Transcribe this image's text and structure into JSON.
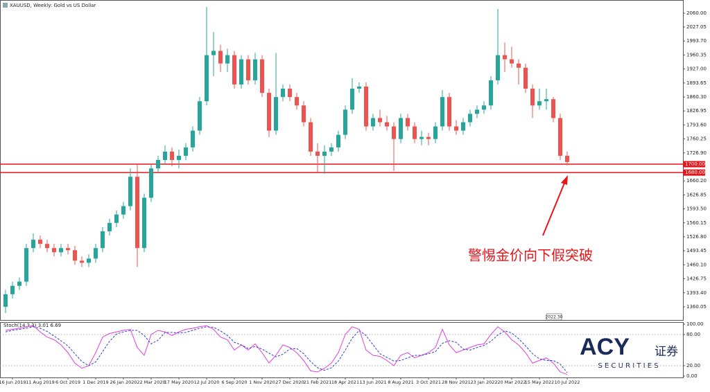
{
  "chart_data": {
    "type": "candlestick",
    "title": "XAUUSD, Weekly: Gold vs US Dollar",
    "annotation": "警惕金价向下假突破",
    "marker_label": "2022.30",
    "logo": {
      "brand": "ACY",
      "cn": "证券",
      "sub": "S E C U R I T I E S"
    },
    "up_color": "#26a69a",
    "down_color": "#ef5350",
    "ylim": [
      1328.6,
      2091.4
    ],
    "yticks": [
      {
        "value": 2060,
        "label": "2060.00"
      },
      {
        "value": 2027.05,
        "label": "2027.05"
      },
      {
        "value": 1993.7,
        "label": "1993.70"
      },
      {
        "value": 1960.35,
        "label": "1960.35"
      },
      {
        "value": 1927,
        "label": "1927.00"
      },
      {
        "value": 1893.65,
        "label": "1893.65"
      },
      {
        "value": 1860.3,
        "label": "1860.30"
      },
      {
        "value": 1826.95,
        "label": "1826.95"
      },
      {
        "value": 1793.6,
        "label": "1793.60"
      },
      {
        "value": 1760.25,
        "label": "1760.25"
      },
      {
        "value": 1726.9,
        "label": "1726.90"
      },
      {
        "value": 1660.2,
        "label": "1660.20"
      },
      {
        "value": 1626.85,
        "label": "1626.85"
      },
      {
        "value": 1593.5,
        "label": "1593.50"
      },
      {
        "value": 1560.15,
        "label": "1560.15"
      },
      {
        "value": 1526.8,
        "label": "1526.80"
      },
      {
        "value": 1493.45,
        "label": "1493.45"
      },
      {
        "value": 1460.1,
        "label": "1460.10"
      },
      {
        "value": 1426.75,
        "label": "1426.75"
      },
      {
        "value": 1393.4,
        "label": "1393.40"
      },
      {
        "value": 1360.05,
        "label": "1360.05"
      }
    ],
    "hlines": [
      {
        "value": 1700,
        "label": "1700.00"
      },
      {
        "value": 1680,
        "label": "1680.00"
      }
    ],
    "hline_color": "#e8141a",
    "categories": [
      null,
      "16 Jun 2019",
      null,
      null,
      null,
      "11 Aug 2019",
      null,
      null,
      null,
      "6 Oct 2019",
      null,
      null,
      null,
      "1 Dec 2019",
      null,
      null,
      null,
      "26 Jan 2020",
      null,
      null,
      null,
      "22 Mar 2020",
      null,
      null,
      null,
      "17 May 2020",
      null,
      null,
      null,
      "12 Jul 2020",
      null,
      null,
      null,
      "6 Sep 2020",
      null,
      null,
      null,
      "1 Nov 2020",
      null,
      null,
      null,
      "27 Dec 2020",
      null,
      null,
      null,
      "21 Feb 2021",
      null,
      null,
      null,
      "18 Apr 2021",
      null,
      null,
      null,
      "13 Jun 2021",
      null,
      null,
      null,
      "8 Aug 2021",
      null,
      null,
      null,
      "3 Oct 2021",
      null,
      null,
      null,
      "28 Nov 2021",
      null,
      null,
      null,
      "23 Jan 2022",
      null,
      null,
      null,
      "20 Mar 2022",
      null,
      null,
      null,
      "15 May 2022",
      null,
      null,
      null,
      "10 Jul 2022"
    ],
    "open": [
      1360,
      1390,
      1410,
      1420,
      1500,
      1520,
      1510,
      1500,
      1490,
      1500,
      1495,
      1470,
      1465,
      1475,
      1500,
      1540,
      1560,
      1580,
      1600,
      1670,
      1500,
      1620,
      1690,
      1710,
      1730,
      1710,
      1720,
      1740,
      1780,
      1850,
      1960,
      1970,
      1940,
      1960,
      1890,
      1950,
      1900,
      1950,
      1870,
      1780,
      1860,
      1880,
      1860,
      1840,
      1800,
      1730,
      1720,
      1730,
      1740,
      1770,
      1830,
      1880,
      1885,
      1790,
      1810,
      1800,
      1790,
      1760,
      1810,
      1790,
      1760,
      1765,
      1760,
      1790,
      1860,
      1790,
      1780,
      1800,
      1820,
      1830,
      1840,
      1900,
      1960,
      1950,
      1940,
      1930,
      1880,
      1840,
      1850,
      1855,
      1810,
      1720
    ],
    "high": [
      1400,
      1420,
      1430,
      1510,
      1535,
      1530,
      1520,
      1510,
      1510,
      1510,
      1505,
      1480,
      1485,
      1510,
      1550,
      1570,
      1590,
      1610,
      1690,
      1700,
      1630,
      1700,
      1720,
      1745,
      1740,
      1735,
      1750,
      1790,
      1860,
      2075,
      2015,
      1985,
      1975,
      1970,
      1960,
      1960,
      1965,
      1960,
      1880,
      1965,
      1890,
      1890,
      1870,
      1850,
      1810,
      1750,
      1745,
      1750,
      1780,
      1840,
      1905,
      1895,
      1895,
      1820,
      1830,
      1815,
      1800,
      1820,
      1820,
      1800,
      1780,
      1775,
      1800,
      1877,
      1870,
      1805,
      1810,
      1830,
      1840,
      1850,
      1910,
      2070,
      1990,
      1980,
      1950,
      1940,
      1890,
      1880,
      1880,
      1860,
      1820,
      1730
    ],
    "low": [
      1345,
      1380,
      1400,
      1410,
      1490,
      1500,
      1490,
      1480,
      1480,
      1485,
      1460,
      1455,
      1455,
      1465,
      1490,
      1530,
      1550,
      1570,
      1590,
      1455,
      1490,
      1610,
      1680,
      1700,
      1695,
      1690,
      1710,
      1730,
      1770,
      1840,
      1910,
      1920,
      1920,
      1880,
      1880,
      1890,
      1890,
      1860,
      1765,
      1770,
      1850,
      1850,
      1830,
      1790,
      1720,
      1680,
      1677,
      1720,
      1730,
      1760,
      1820,
      1870,
      1780,
      1780,
      1790,
      1780,
      1684,
      1750,
      1780,
      1750,
      1745,
      1745,
      1750,
      1780,
      1780,
      1770,
      1770,
      1790,
      1810,
      1820,
      1830,
      1890,
      1920,
      1930,
      1890,
      1870,
      1810,
      1830,
      1830,
      1800,
      1710,
      1697
    ],
    "close": [
      1390,
      1410,
      1420,
      1500,
      1520,
      1510,
      1500,
      1490,
      1500,
      1495,
      1470,
      1465,
      1475,
      1500,
      1540,
      1560,
      1580,
      1600,
      1670,
      1500,
      1620,
      1690,
      1710,
      1730,
      1710,
      1720,
      1740,
      1780,
      1850,
      1960,
      1970,
      1940,
      1960,
      1890,
      1950,
      1900,
      1950,
      1870,
      1780,
      1860,
      1880,
      1860,
      1840,
      1800,
      1730,
      1720,
      1730,
      1740,
      1770,
      1830,
      1880,
      1885,
      1790,
      1810,
      1800,
      1790,
      1760,
      1810,
      1790,
      1760,
      1765,
      1760,
      1790,
      1860,
      1790,
      1780,
      1800,
      1820,
      1830,
      1840,
      1900,
      1960,
      1950,
      1940,
      1930,
      1880,
      1840,
      1850,
      1855,
      1810,
      1720,
      1705
    ],
    "indicator": {
      "label": "Stoch(14,3,3) 3.01 6.69",
      "ylim": [
        -2.7,
        104
      ],
      "yticks": [
        {
          "value": 100,
          "label": "100.00"
        },
        {
          "value": 80,
          "label": "80.00"
        },
        {
          "value": 20,
          "label": "20.00"
        },
        {
          "value": 0,
          "label": "0.00"
        }
      ],
      "levels": [
        80,
        20
      ],
      "series": [
        {
          "color": "#e040e0",
          "dashed": false,
          "values": [
            88,
            90,
            92,
            95,
            97,
            85,
            75,
            70,
            60,
            45,
            25,
            15,
            20,
            45,
            75,
            82,
            85,
            88,
            90,
            55,
            40,
            80,
            88,
            85,
            78,
            85,
            90,
            92,
            95,
            97,
            90,
            75,
            70,
            50,
            60,
            50,
            62,
            45,
            25,
            40,
            60,
            55,
            45,
            30,
            10,
            8,
            15,
            25,
            45,
            80,
            95,
            90,
            50,
            40,
            38,
            30,
            20,
            40,
            45,
            35,
            40,
            45,
            55,
            90,
            60,
            45,
            50,
            55,
            60,
            62,
            80,
            95,
            85,
            70,
            60,
            45,
            25,
            30,
            35,
            25,
            8,
            3.01
          ]
        },
        {
          "color": "#2a3fd4",
          "dashed": true,
          "values": [
            85,
            88,
            90,
            92,
            95,
            92,
            86,
            77,
            68,
            58,
            43,
            28,
            20,
            27,
            47,
            67,
            81,
            85,
            88,
            88,
            78,
            62,
            69,
            84,
            84,
            83,
            84,
            88,
            92,
            95,
            94,
            87,
            78,
            65,
            60,
            53,
            57,
            52,
            44,
            37,
            42,
            52,
            53,
            43,
            28,
            16,
            11,
            16,
            29,
            50,
            73,
            88,
            78,
            60,
            43,
            36,
            29,
            30,
            35,
            40,
            40,
            43,
            47,
            63,
            68,
            65,
            52,
            50,
            55,
            59,
            67,
            79,
            87,
            83,
            72,
            58,
            43,
            33,
            30,
            30,
            23,
            6.69
          ]
        }
      ]
    }
  }
}
